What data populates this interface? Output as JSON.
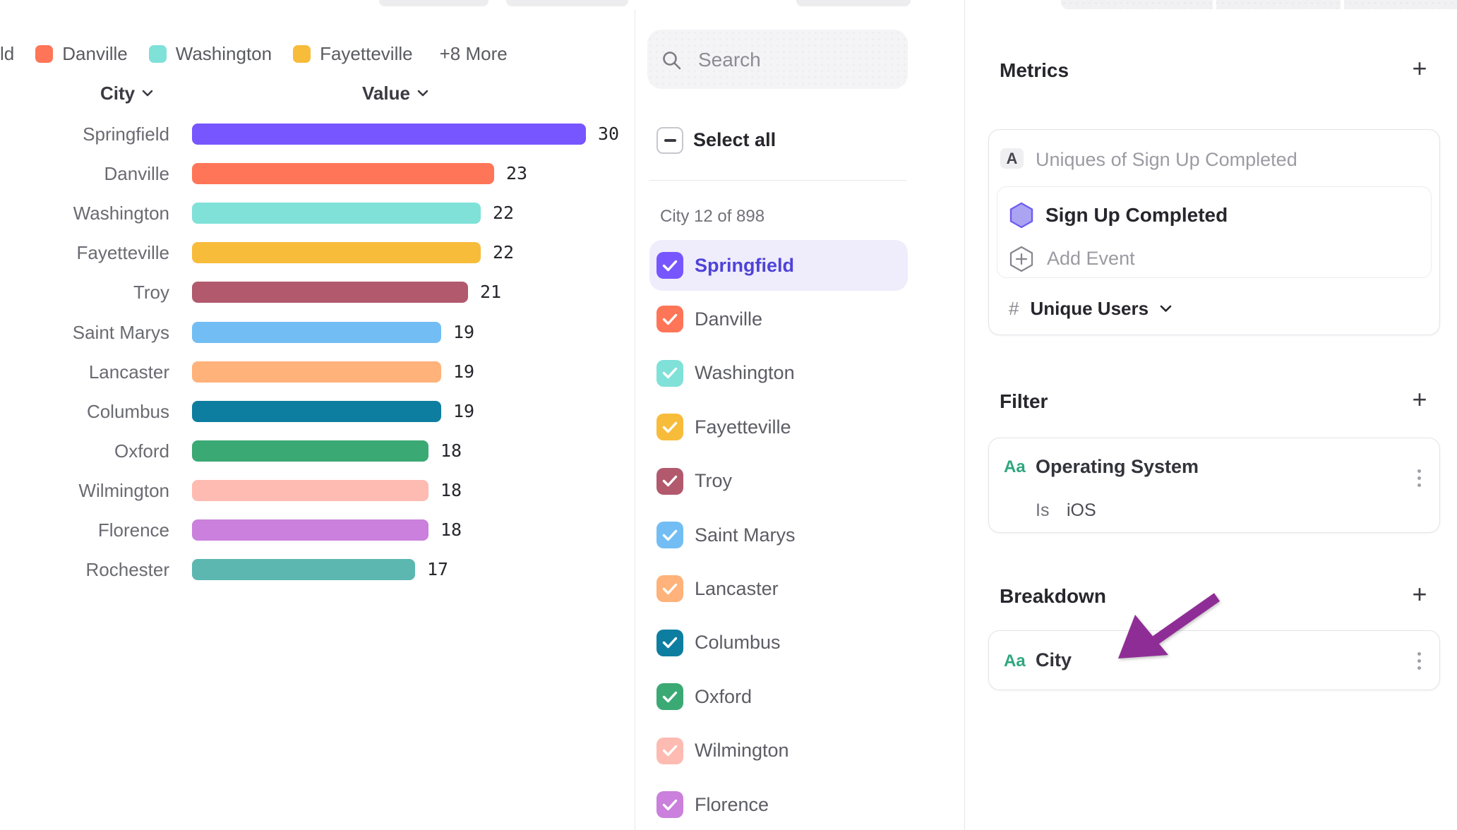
{
  "legend": {
    "truncated_item": "ld",
    "items": [
      {
        "label": "Danville",
        "color": "#FF7557"
      },
      {
        "label": "Washington",
        "color": "#80E1D9"
      },
      {
        "label": "Fayetteville",
        "color": "#F8BC3B"
      }
    ],
    "more_label": "+8 More"
  },
  "chart": {
    "city_header": "City",
    "value_header": "Value"
  },
  "chart_data": {
    "type": "bar",
    "orientation": "horizontal",
    "title": "",
    "xlabel": "City",
    "ylabel": "Value",
    "xlim": [
      0,
      30
    ],
    "sort": "descending",
    "categories": [
      "Springfield",
      "Danville",
      "Washington",
      "Fayetteville",
      "Troy",
      "Saint Marys",
      "Lancaster",
      "Columbus",
      "Oxford",
      "Wilmington",
      "Florence",
      "Rochester"
    ],
    "values": [
      30,
      23,
      22,
      22,
      21,
      19,
      19,
      19,
      18,
      18,
      18,
      17
    ],
    "colors": [
      "#7856FF",
      "#FF7557",
      "#80E1D9",
      "#F8BC3B",
      "#B2596E",
      "#72BEF4",
      "#FFB27A",
      "#0D7EA0",
      "#3BA974",
      "#FEBBB2",
      "#CA80DC",
      "#5BB7AF"
    ]
  },
  "selector": {
    "search_placeholder": "Search",
    "select_all_label": "Select all",
    "count_label": "City 12 of 898",
    "highlight_text_color": "#4F43D8",
    "highlight_bg_color": "#EFECFC",
    "items": [
      {
        "label": "Springfield",
        "color": "#7856FF",
        "checked": true,
        "highlighted": true
      },
      {
        "label": "Danville",
        "color": "#FF7557",
        "checked": true,
        "highlighted": false
      },
      {
        "label": "Washington",
        "color": "#80E1D9",
        "checked": true,
        "highlighted": false
      },
      {
        "label": "Fayetteville",
        "color": "#F8BC3B",
        "checked": true,
        "highlighted": false
      },
      {
        "label": "Troy",
        "color": "#B2596E",
        "checked": true,
        "highlighted": false
      },
      {
        "label": "Saint Marys",
        "color": "#72BEF4",
        "checked": true,
        "highlighted": false
      },
      {
        "label": "Lancaster",
        "color": "#FFB27A",
        "checked": true,
        "highlighted": false
      },
      {
        "label": "Columbus",
        "color": "#0D7EA0",
        "checked": true,
        "highlighted": false
      },
      {
        "label": "Oxford",
        "color": "#3BA974",
        "checked": true,
        "highlighted": false
      },
      {
        "label": "Wilmington",
        "color": "#FEBBB2",
        "checked": true,
        "highlighted": false
      },
      {
        "label": "Florence",
        "color": "#CA80DC",
        "checked": true,
        "highlighted": false
      }
    ]
  },
  "panel": {
    "metrics": {
      "title": "Metrics",
      "plus_label": "+",
      "formula_badge": "A",
      "formula_label": "Uniques of Sign Up Completed",
      "event_name": "Sign Up Completed",
      "add_event_label": "Add Event",
      "hash_symbol": "#",
      "aggregation_label": "Unique Users",
      "event_icon_fill": "#ABA4F3",
      "event_icon_stroke": "#6D5EF0"
    },
    "filter": {
      "title": "Filter",
      "plus_label": "+",
      "type_badge": "Aa",
      "property": "Operating System",
      "operator": "Is",
      "value": "iOS"
    },
    "breakdown": {
      "title": "Breakdown",
      "plus_label": "+",
      "type_badge": "Aa",
      "property": "City"
    },
    "annotation_arrow_color": "#8F2D96"
  }
}
